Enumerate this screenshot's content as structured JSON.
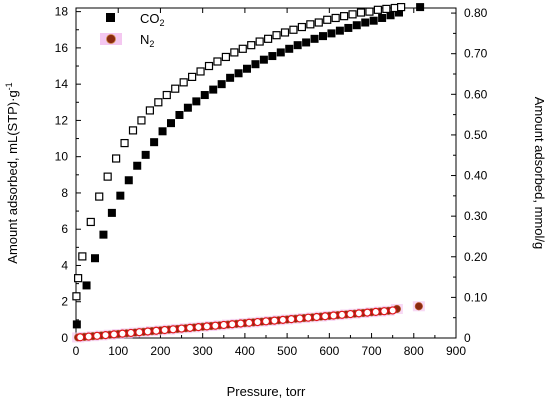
{
  "chart_data": {
    "type": "scatter",
    "xlabel": "Pressure, torr",
    "ylabel_main": "Amount adsorbed, mL(STP)·g",
    "ylabel_sup": "-1",
    "y2label": "Amount adsorbed, mmol/g",
    "xlim": [
      0,
      900
    ],
    "ylim": [
      0,
      18.2
    ],
    "y2lim": [
      0,
      0.8125
    ],
    "x_ticks": [
      "0",
      "100",
      "200",
      "300",
      "400",
      "500",
      "600",
      "700",
      "800",
      "900"
    ],
    "y_ticks": [
      "0",
      "2",
      "4",
      "6",
      "8",
      "10",
      "12",
      "14",
      "16",
      "18"
    ],
    "y2_ticks": [
      "0",
      "0.10",
      "0.20",
      "0.30",
      "0.40",
      "0.50",
      "0.60",
      "0.70",
      "0.80"
    ],
    "legend": [
      {
        "label": "CO",
        "subscript": "2",
        "marker": "filled-square",
        "color": "#000000"
      },
      {
        "label": "N",
        "subscript": "2",
        "marker": "circle",
        "color": "#8b2a10"
      }
    ],
    "series": [
      {
        "name": "CO2",
        "marker": "filled-square",
        "color": "#000000",
        "x": [
          2,
          25,
          45,
          65,
          85,
          105,
          125,
          145,
          165,
          185,
          205,
          225,
          245,
          265,
          285,
          305,
          325,
          345,
          365,
          385,
          405,
          425,
          445,
          465,
          485,
          505,
          525,
          545,
          565,
          585,
          605,
          625,
          645,
          665,
          685,
          705,
          725,
          745,
          765,
          815
        ],
        "y": [
          0.75,
          2.9,
          4.4,
          5.7,
          6.9,
          7.85,
          8.7,
          9.5,
          10.1,
          10.8,
          11.4,
          11.85,
          12.3,
          12.7,
          13.05,
          13.4,
          13.7,
          14.0,
          14.35,
          14.6,
          14.85,
          15.1,
          15.35,
          15.55,
          15.75,
          15.95,
          16.15,
          16.3,
          16.5,
          16.65,
          16.8,
          16.95,
          17.1,
          17.25,
          17.4,
          17.5,
          17.65,
          17.8,
          17.95,
          18.25
        ]
      },
      {
        "name": "CO2",
        "marker": "open-square",
        "color": "#000000",
        "x": [
          1,
          5,
          15,
          35,
          55,
          75,
          95,
          115,
          135,
          155,
          175,
          195,
          215,
          235,
          255,
          275,
          295,
          315,
          335,
          355,
          375,
          395,
          415,
          435,
          455,
          475,
          495,
          515,
          535,
          555,
          575,
          595,
          615,
          635,
          655,
          675,
          695,
          715,
          735,
          755,
          770
        ],
        "y": [
          2.3,
          3.3,
          4.5,
          6.4,
          7.8,
          8.9,
          9.9,
          10.75,
          11.45,
          12.0,
          12.55,
          13.0,
          13.4,
          13.75,
          14.1,
          14.4,
          14.7,
          15.0,
          15.25,
          15.5,
          15.75,
          15.95,
          16.15,
          16.35,
          16.5,
          16.7,
          16.85,
          17.0,
          17.15,
          17.3,
          17.4,
          17.55,
          17.65,
          17.75,
          17.85,
          17.95,
          18.0,
          18.1,
          18.15,
          18.2,
          18.25
        ]
      },
      {
        "name": "N2",
        "marker": "filled-circle",
        "color": "#8b2a10",
        "x": [
          5,
          20,
          40,
          60,
          80,
          100,
          120,
          140,
          160,
          180,
          200,
          220,
          240,
          260,
          280,
          300,
          320,
          340,
          360,
          380,
          400,
          420,
          440,
          460,
          480,
          500,
          520,
          540,
          560,
          580,
          600,
          620,
          640,
          660,
          680,
          700,
          720,
          740,
          760,
          812
        ],
        "y": [
          0.03,
          0.06,
          0.1,
          0.14,
          0.18,
          0.22,
          0.26,
          0.3,
          0.34,
          0.38,
          0.42,
          0.46,
          0.5,
          0.54,
          0.58,
          0.62,
          0.66,
          0.7,
          0.74,
          0.78,
          0.82,
          0.86,
          0.9,
          0.94,
          0.98,
          1.02,
          1.06,
          1.1,
          1.14,
          1.18,
          1.22,
          1.26,
          1.3,
          1.34,
          1.38,
          1.42,
          1.46,
          1.5,
          1.6,
          1.75
        ]
      },
      {
        "name": "N2",
        "marker": "open-circle",
        "color": "#e0151a",
        "x": [
          10,
          30,
          50,
          70,
          90,
          110,
          130,
          150,
          170,
          190,
          210,
          230,
          250,
          270,
          290,
          310,
          330,
          350,
          370,
          390,
          410,
          430,
          450,
          470,
          490,
          510,
          530,
          550,
          570,
          590,
          610,
          630,
          650,
          670,
          690,
          710,
          730,
          750
        ],
        "y": [
          0.04,
          0.08,
          0.12,
          0.16,
          0.2,
          0.24,
          0.28,
          0.32,
          0.36,
          0.4,
          0.44,
          0.48,
          0.52,
          0.56,
          0.6,
          0.64,
          0.68,
          0.72,
          0.76,
          0.8,
          0.84,
          0.88,
          0.92,
          0.96,
          1.0,
          1.04,
          1.08,
          1.12,
          1.16,
          1.2,
          1.24,
          1.28,
          1.32,
          1.36,
          1.4,
          1.44,
          1.48,
          1.52
        ]
      }
    ]
  }
}
